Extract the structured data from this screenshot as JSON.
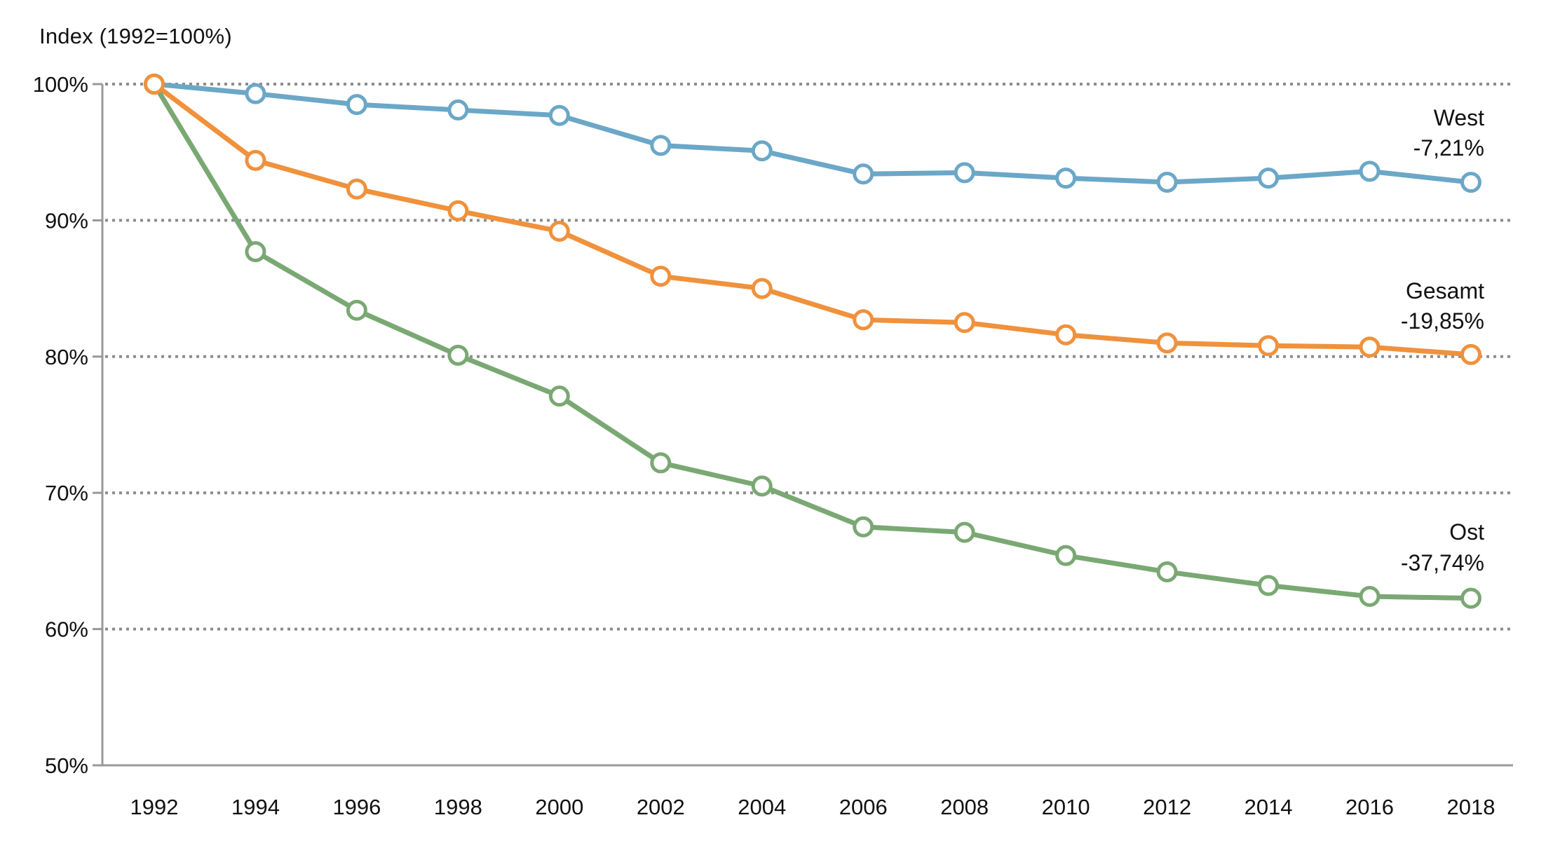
{
  "chart_data": {
    "type": "line",
    "title": "Index (1992=100%)",
    "xlabel": "",
    "ylabel": "Index (1992=100%)",
    "x": [
      1992,
      1994,
      1996,
      1998,
      2000,
      2002,
      2004,
      2006,
      2008,
      2010,
      2012,
      2014,
      2016,
      2018
    ],
    "xtick_labels": [
      "1992",
      "1994",
      "1996",
      "1998",
      "2000",
      "2002",
      "2004",
      "2006",
      "2008",
      "2010",
      "2012",
      "2014",
      "2016",
      "2018"
    ],
    "ylim": [
      50,
      100
    ],
    "yticks": [
      100,
      90,
      80,
      70,
      60,
      50
    ],
    "ytick_labels": [
      "100%",
      "90%",
      "80%",
      "70%",
      "60%",
      "50%"
    ],
    "grid": "horizontal-dotted",
    "gridline_color": "#8c8c8c",
    "axis_color": "#999999",
    "legend_position": "right-of-last-point",
    "series": [
      {
        "name": "West",
        "delta_label": "-7,21%",
        "color": "#6BA7C7",
        "values": [
          100,
          99.3,
          98.5,
          98.1,
          97.7,
          95.5,
          95.1,
          93.4,
          93.5,
          93.1,
          92.8,
          93.1,
          93.6,
          92.79
        ]
      },
      {
        "name": "Gesamt",
        "delta_label": "-19,85%",
        "color": "#F0913C",
        "values": [
          100,
          94.4,
          92.3,
          90.7,
          89.2,
          85.9,
          85.0,
          82.7,
          82.5,
          81.6,
          81.0,
          80.8,
          80.7,
          80.15
        ]
      },
      {
        "name": "Ost",
        "delta_label": "-37,74%",
        "color": "#7AA873",
        "values": [
          100,
          87.7,
          83.4,
          80.1,
          77.1,
          72.2,
          70.5,
          67.5,
          67.1,
          65.4,
          64.2,
          63.2,
          62.4,
          62.26
        ]
      }
    ]
  }
}
